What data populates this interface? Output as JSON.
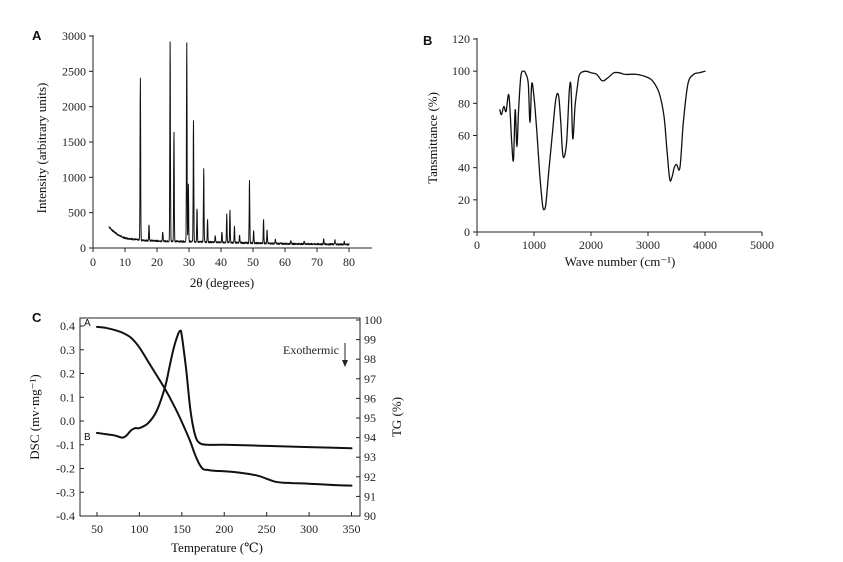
{
  "chart_data": [
    {
      "panel": "A",
      "type": "line",
      "xlabel": "2θ (degrees)",
      "ylabel": "Intensity (arbitrary units)",
      "xlim": [
        0,
        85
      ],
      "ylim": [
        0,
        3000
      ],
      "xticks": [
        0,
        10,
        20,
        30,
        40,
        50,
        60,
        70,
        80
      ],
      "yticks": [
        0,
        500,
        1000,
        1500,
        2000,
        2500,
        3000
      ],
      "x_start": 5,
      "x_end": 80,
      "baseline": [
        [
          5,
          300
        ],
        [
          6,
          250
        ],
        [
          8,
          180
        ],
        [
          10,
          140
        ],
        [
          15,
          110
        ],
        [
          20,
          100
        ],
        [
          30,
          90
        ],
        [
          40,
          80
        ],
        [
          50,
          70
        ],
        [
          60,
          60
        ],
        [
          70,
          55
        ],
        [
          80,
          50
        ]
      ],
      "peaks": [
        {
          "x": 14.8,
          "y": 2400
        },
        {
          "x": 17.5,
          "y": 330
        },
        {
          "x": 21.8,
          "y": 230
        },
        {
          "x": 24.1,
          "y": 2920
        },
        {
          "x": 25.3,
          "y": 1650
        },
        {
          "x": 29.3,
          "y": 2910
        },
        {
          "x": 29.8,
          "y": 900
        },
        {
          "x": 31.4,
          "y": 1800
        },
        {
          "x": 32.5,
          "y": 560
        },
        {
          "x": 34.6,
          "y": 1130
        },
        {
          "x": 35.8,
          "y": 400
        },
        {
          "x": 38.2,
          "y": 180
        },
        {
          "x": 40.3,
          "y": 230
        },
        {
          "x": 41.8,
          "y": 480
        },
        {
          "x": 42.8,
          "y": 530
        },
        {
          "x": 44.2,
          "y": 300
        },
        {
          "x": 45.8,
          "y": 180
        },
        {
          "x": 48.9,
          "y": 950
        },
        {
          "x": 50.2,
          "y": 250
        },
        {
          "x": 53.3,
          "y": 400
        },
        {
          "x": 54.4,
          "y": 260
        },
        {
          "x": 57.0,
          "y": 120
        },
        {
          "x": 61.8,
          "y": 110
        },
        {
          "x": 66.0,
          "y": 100
        },
        {
          "x": 72.1,
          "y": 130
        },
        {
          "x": 75.6,
          "y": 110
        },
        {
          "x": 78.5,
          "y": 90
        }
      ]
    },
    {
      "panel": "B",
      "type": "line",
      "xlabel": "Wave number (cm⁻¹)",
      "ylabel": "Tansmittance (%)",
      "xlim": [
        0,
        5000
      ],
      "ylim": [
        0,
        120
      ],
      "xticks": [
        0,
        1000,
        2000,
        3000,
        4000,
        5000
      ],
      "yticks": [
        0,
        20,
        40,
        60,
        80,
        100,
        120
      ],
      "x": [
        400,
        430,
        470,
        510,
        560,
        610,
        640,
        670,
        700,
        730,
        770,
        820,
        860,
        900,
        930,
        960,
        1000,
        1050,
        1100,
        1150,
        1180,
        1210,
        1260,
        1320,
        1380,
        1430,
        1470,
        1510,
        1570,
        1620,
        1650,
        1680,
        1720,
        1760,
        1800,
        1900,
        2000,
        2100,
        2200,
        2300,
        2400,
        2500,
        2600,
        2800,
        3000,
        3100,
        3200,
        3280,
        3330,
        3380,
        3420,
        3460,
        3500,
        3560,
        3620,
        3700,
        3800,
        3900,
        4000
      ],
      "y": [
        76,
        73,
        78,
        75,
        85,
        55,
        45,
        76,
        53,
        76,
        97,
        100,
        98,
        92,
        68,
        92,
        84,
        62,
        36,
        17,
        14,
        18,
        38,
        60,
        82,
        85,
        68,
        47,
        55,
        88,
        90,
        58,
        78,
        90,
        98,
        100,
        99,
        98,
        94,
        96,
        99,
        99,
        98,
        98,
        96,
        93,
        86,
        72,
        52,
        33,
        34,
        40,
        42,
        40,
        68,
        92,
        98,
        99,
        100
      ]
    },
    {
      "panel": "C",
      "type": "line",
      "xlabel": "Temperature (℃)",
      "ylabel": "DSC (mv·mg⁻¹)",
      "ylabel_right": "TG (%)",
      "annotation": "Exothermic",
      "xlim": [
        30,
        360
      ],
      "ylim": [
        -0.4,
        0.42
      ],
      "ylim_right": [
        90,
        100
      ],
      "xticks": [
        50,
        100,
        150,
        200,
        250,
        300,
        350
      ],
      "yticks": [
        -0.4,
        -0.3,
        -0.2,
        -0.1,
        0.0,
        0.1,
        0.2,
        0.3,
        0.4
      ],
      "yticks_right": [
        90,
        91,
        92,
        93,
        94,
        95,
        96,
        97,
        98,
        99,
        100
      ],
      "series": [
        {
          "name": "A",
          "axis": "right",
          "x": [
            50,
            60,
            70,
            80,
            90,
            100,
            110,
            120,
            130,
            140,
            150,
            160,
            165,
            170,
            175,
            180,
            190,
            200,
            220,
            240,
            250,
            260,
            270,
            280,
            300,
            320,
            350
          ],
          "y": [
            99.65,
            99.6,
            99.5,
            99.35,
            99.1,
            98.6,
            97.9,
            97.2,
            96.5,
            95.7,
            94.8,
            93.8,
            93.2,
            92.7,
            92.4,
            92.35,
            92.3,
            92.28,
            92.2,
            92.05,
            91.9,
            91.75,
            91.7,
            91.68,
            91.65,
            91.6,
            91.55
          ]
        },
        {
          "name": "B",
          "axis": "left",
          "x": [
            50,
            60,
            70,
            80,
            85,
            90,
            95,
            100,
            110,
            120,
            130,
            135,
            140,
            145,
            148,
            150,
            155,
            160,
            165,
            170,
            180,
            200,
            250,
            300,
            350
          ],
          "y": [
            -0.05,
            -0.055,
            -0.06,
            -0.07,
            -0.06,
            -0.04,
            -0.03,
            -0.03,
            -0.01,
            0.04,
            0.14,
            0.22,
            0.3,
            0.36,
            0.38,
            0.36,
            0.22,
            0.05,
            -0.05,
            -0.09,
            -0.1,
            -0.1,
            -0.105,
            -0.11,
            -0.115
          ]
        }
      ]
    }
  ]
}
